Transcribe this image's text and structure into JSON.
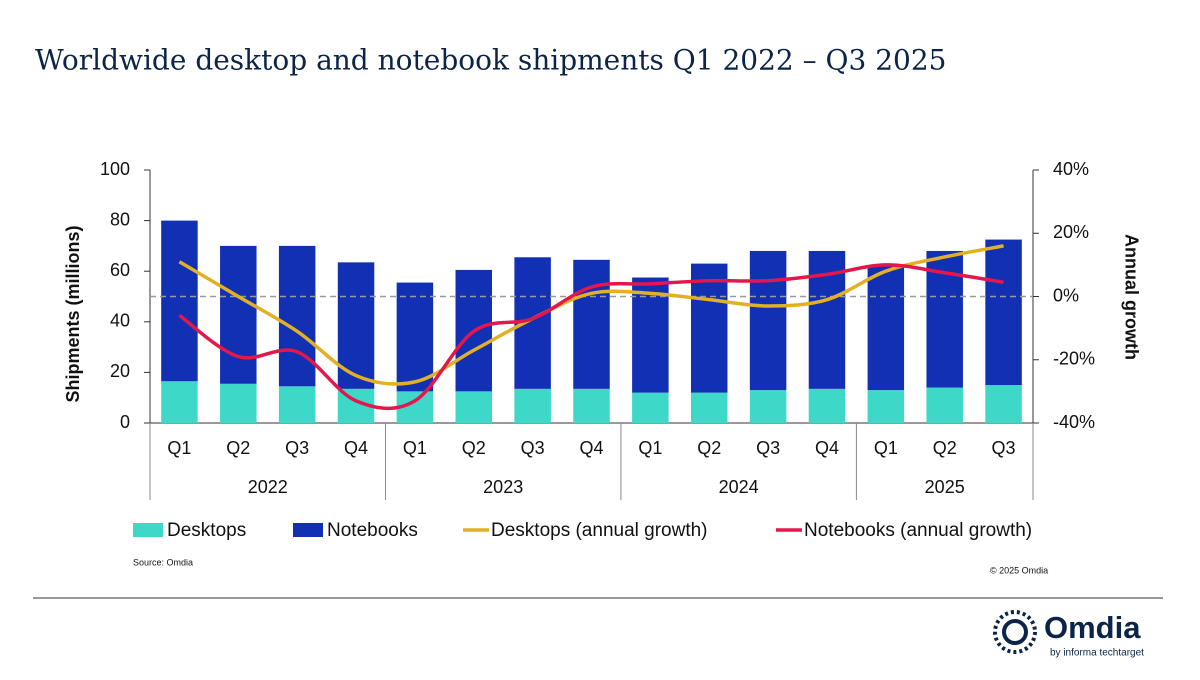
{
  "chart_data": {
    "type": "bar",
    "title": "Worldwide desktop and notebook shipments Q1 2022 – Q3 2025",
    "y_label": "Shipments (millions)",
    "y2_label": "Annual growth",
    "groups": [
      {
        "label": "2022",
        "categories": [
          "Q1",
          "Q2",
          "Q3",
          "Q4"
        ]
      },
      {
        "label": "2023",
        "categories": [
          "Q1",
          "Q2",
          "Q3",
          "Q4"
        ]
      },
      {
        "label": "2024",
        "categories": [
          "Q1",
          "Q2",
          "Q3",
          "Q4"
        ]
      },
      {
        "label": "2025",
        "categories": [
          "Q1",
          "Q2",
          "Q3"
        ]
      }
    ],
    "series": [
      {
        "name": "Desktops",
        "type": "bar",
        "color": "#3dd8c8",
        "values": [
          16.5,
          15.5,
          14.5,
          13.5,
          12.5,
          12.5,
          13.5,
          13.5,
          12,
          12,
          13,
          13.5,
          13,
          14,
          15
        ]
      },
      {
        "name": "Notebooks",
        "type": "bar",
        "color": "#1230b3",
        "values": [
          63.5,
          54.5,
          55.5,
          50,
          43,
          48,
          52,
          51,
          45.5,
          51,
          55,
          54.5,
          49,
          54,
          57.5
        ]
      },
      {
        "name": "Desktops (annual growth)",
        "type": "line",
        "axis": "y2",
        "color": "#e2b024",
        "values": [
          11,
          0,
          -11,
          -25,
          -27,
          -17,
          -7,
          1,
          1,
          -1,
          -3,
          -1,
          8,
          12.5,
          16
        ]
      },
      {
        "name": "Notebooks (annual growth)",
        "type": "line",
        "axis": "y2",
        "color": "#e3174b",
        "values": [
          -6,
          -19,
          -17.5,
          -33,
          -33,
          -11,
          -7,
          3,
          4,
          5,
          5,
          7,
          10,
          7.5,
          4.5
        ]
      }
    ],
    "ylim": [
      0,
      100
    ],
    "yticks": [
      0,
      20,
      40,
      60,
      80,
      100
    ],
    "y2lim": [
      -40,
      40
    ],
    "y2ticks": [
      {
        "value": -40,
        "label": "-40%"
      },
      {
        "value": -20,
        "label": "-20%"
      },
      {
        "value": 0,
        "label": "0%"
      },
      {
        "value": 20,
        "label": "20%"
      },
      {
        "value": 40,
        "label": "40%"
      }
    ],
    "y2_reference": 0,
    "source": "Source: Omdia",
    "copyright": "© 2025 Omdia"
  },
  "branding": {
    "name": "Omdia",
    "tagline": "by informa techtarget"
  }
}
